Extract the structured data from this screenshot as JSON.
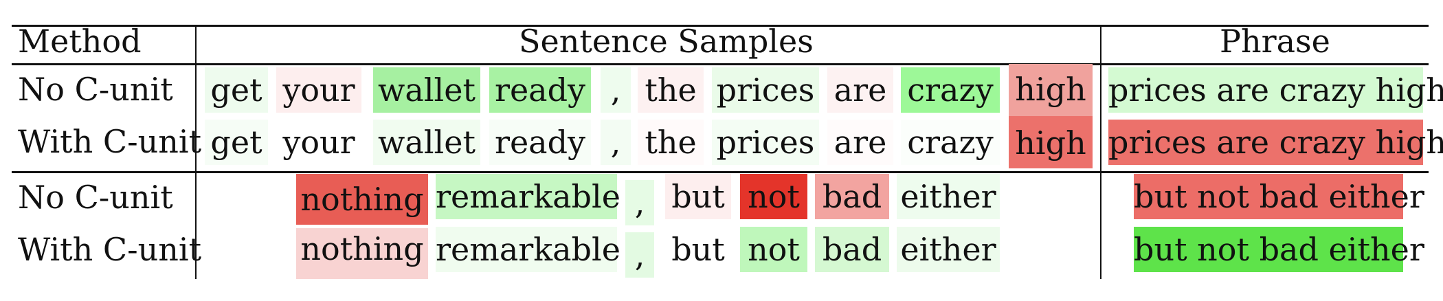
{
  "header": {
    "method": "Method",
    "samples": "Sentence Samples",
    "phrase": "Phrase"
  },
  "rows": [
    {
      "method": "No C-unit",
      "tokens": [
        {
          "text": "get",
          "color": "#eefbee"
        },
        {
          "text": "your",
          "color": "#fdeeee"
        },
        {
          "text": "wallet",
          "color": "#a6f0a1"
        },
        {
          "text": "ready",
          "color": "#a8f2a3"
        },
        {
          "text": ",",
          "color": "#eefcee"
        },
        {
          "text": "the",
          "color": "#fdf1f1"
        },
        {
          "text": "prices",
          "color": "#eafbe9"
        },
        {
          "text": "are",
          "color": "#fdf2f2"
        },
        {
          "text": "crazy",
          "color": "#9df898"
        },
        {
          "text": "high",
          "color": "#f0a29d"
        }
      ],
      "phrase": {
        "text": "prices are crazy high",
        "color": "#d4fad2"
      }
    },
    {
      "method": "With C-unit",
      "tokens": [
        {
          "text": "get",
          "color": "#f6fdf6"
        },
        {
          "text": "your",
          "color": "#ffffff"
        },
        {
          "text": "wallet",
          "color": "#f1fcf0"
        },
        {
          "text": "ready",
          "color": "#f7fdf7"
        },
        {
          "text": ",",
          "color": "#f3fcf3"
        },
        {
          "text": "the",
          "color": "#fffafa"
        },
        {
          "text": "prices",
          "color": "#f4fdf4"
        },
        {
          "text": "are",
          "color": "#fffbfb"
        },
        {
          "text": "crazy",
          "color": "#fbfefb"
        },
        {
          "text": "high",
          "color": "#ec716b"
        }
      ],
      "phrase": {
        "text": "prices are crazy high",
        "color": "#ec716b"
      }
    },
    {
      "method": "No C-unit",
      "tokens": [
        {
          "text": "nothing",
          "color": "#e85d55"
        },
        {
          "text": "remarkable",
          "color": "#c6f7c3"
        },
        {
          "text": ",",
          "color": "#e6fbe5"
        },
        {
          "text": "but",
          "color": "#fdeeee"
        },
        {
          "text": "not",
          "color": "#e4342a"
        },
        {
          "text": "bad",
          "color": "#f2a4a0"
        },
        {
          "text": "either",
          "color": "#eefcee"
        }
      ],
      "phrase": {
        "text": "but not bad either",
        "color": "#ec6d67"
      }
    },
    {
      "method": "With C-unit",
      "tokens": [
        {
          "text": "nothing",
          "color": "#f8d3d2"
        },
        {
          "text": "remarkable",
          "color": "#f0fcef"
        },
        {
          "text": ",",
          "color": "#e3fae2"
        },
        {
          "text": "but",
          "color": "#ffffff"
        },
        {
          "text": "not",
          "color": "#bff7bb"
        },
        {
          "text": "bad",
          "color": "#d5f8d2"
        },
        {
          "text": "either",
          "color": "#edfbec"
        }
      ],
      "phrase": {
        "text": "but not bad either",
        "color": "#5ee34a"
      }
    }
  ]
}
